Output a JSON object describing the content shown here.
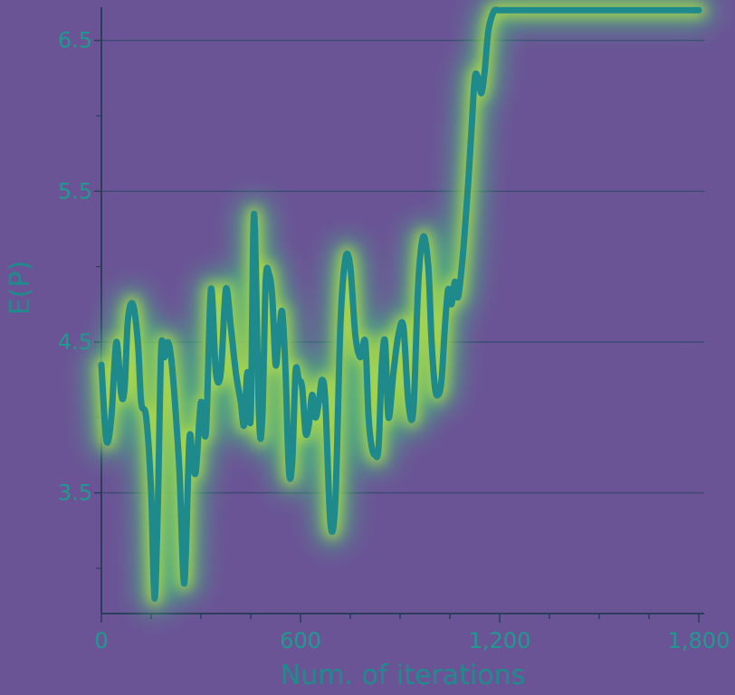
{
  "colors": {
    "background": "#6b5496",
    "axis": "#2b3d5c",
    "gridline": "#3d4a73",
    "line_core": "#1f8a8c",
    "glow_outer": "#3fbf7f",
    "glow_inner": "#c8e63a",
    "tick_text": "#1f9a8e"
  },
  "chart_data": {
    "type": "line",
    "xlabel": "Num. of iterations",
    "ylabel": "E(P)",
    "xlim": [
      0,
      1800
    ],
    "ylim": [
      2.7,
      6.72
    ],
    "xticks": [
      0,
      600,
      1200,
      1800
    ],
    "xtick_labels": [
      "0",
      "600",
      "1,200",
      "1,800"
    ],
    "yticks": [
      3.5,
      4.5,
      5.5,
      6.5
    ],
    "ytick_labels": [
      "3.5",
      "4.5",
      "5.5",
      "6.5"
    ],
    "grid": "horizontal",
    "series": [
      {
        "x": [
          0,
          15,
          30,
          45,
          60,
          70,
          80,
          95,
          110,
          120,
          135,
          150,
          160,
          170,
          180,
          190,
          200,
          210,
          220,
          235,
          250,
          265,
          275,
          285,
          300,
          315,
          330,
          345,
          360,
          375,
          390,
          405,
          420,
          430,
          440,
          450,
          460,
          475,
          485,
          495,
          505,
          515,
          525,
          535,
          545,
          555,
          565,
          575,
          585,
          595,
          605,
          615,
          625,
          635,
          645,
          655,
          665,
          675,
          690,
          705,
          720,
          735,
          750,
          765,
          780,
          795,
          805,
          815,
          825,
          835,
          845,
          855,
          865,
          880,
          895,
          910,
          925,
          940,
          955,
          970,
          985,
          995,
          1005,
          1015,
          1025,
          1035,
          1045,
          1055,
          1065,
          1075,
          1090,
          1105,
          1115,
          1125,
          1135,
          1145,
          1155,
          1165,
          1175,
          1185,
          1195,
          1205,
          1215,
          1225,
          1235,
          1250,
          1265,
          1280,
          1290,
          1300,
          1310,
          1320,
          1330,
          1345,
          1360,
          1380,
          1400,
          1420,
          1440,
          1455,
          1470,
          1490,
          1510,
          1530,
          1550,
          1570,
          1590,
          1620,
          1660,
          1700,
          1750,
          1800
        ],
        "y": [
          4.35,
          3.85,
          4.0,
          4.5,
          4.15,
          4.2,
          4.65,
          4.75,
          4.5,
          4.1,
          4.0,
          3.5,
          2.8,
          3.4,
          4.45,
          4.4,
          4.5,
          4.4,
          4.15,
          3.65,
          2.9,
          3.85,
          3.7,
          3.65,
          4.1,
          3.9,
          4.85,
          4.3,
          4.3,
          4.85,
          4.6,
          4.3,
          4.1,
          3.95,
          4.3,
          4.0,
          5.35,
          4.0,
          4.0,
          4.9,
          4.95,
          4.8,
          4.35,
          4.55,
          4.7,
          4.3,
          3.65,
          3.7,
          4.3,
          4.25,
          4.2,
          3.9,
          3.95,
          4.15,
          4.0,
          4.1,
          4.25,
          4.1,
          3.3,
          3.45,
          4.6,
          5.05,
          5.0,
          4.55,
          4.4,
          4.5,
          4.0,
          3.8,
          3.75,
          3.8,
          4.35,
          4.5,
          4.0,
          4.3,
          4.55,
          4.6,
          4.1,
          4.05,
          4.9,
          5.2,
          5.0,
          4.5,
          4.2,
          4.15,
          4.25,
          4.6,
          4.85,
          4.75,
          4.9,
          4.8,
          5.1,
          5.55,
          5.9,
          6.25,
          6.25,
          6.15,
          6.3,
          6.55,
          6.65,
          6.7,
          6.7,
          6.7,
          6.7,
          6.7,
          6.7,
          6.7,
          6.7,
          6.7,
          6.7,
          6.7,
          6.7,
          6.7,
          6.7,
          6.7,
          6.7,
          6.7,
          6.7,
          6.7,
          6.7,
          6.7,
          6.7,
          6.7,
          6.7,
          6.7,
          6.7,
          6.7,
          6.7,
          6.7,
          6.7,
          6.7,
          6.7,
          6.7
        ]
      }
    ]
  }
}
